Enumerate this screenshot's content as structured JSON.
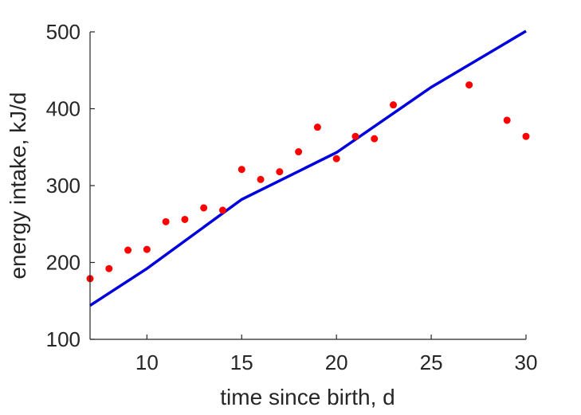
{
  "chart_data": {
    "type": "scatter",
    "title": "",
    "xlabel": "time since birth, d",
    "ylabel": "energy intake, kJ/d",
    "xlim": [
      7,
      30
    ],
    "ylim": [
      100,
      500
    ],
    "xticks": [
      10,
      15,
      20,
      25,
      30
    ],
    "yticks": [
      100,
      200,
      300,
      400,
      500
    ],
    "grid": false,
    "legend": "none",
    "series": [
      {
        "kind": "scatter",
        "color": "#ff0000",
        "x": [
          7,
          8,
          9,
          10,
          11,
          12,
          13,
          14,
          15,
          16,
          17,
          18,
          19,
          20,
          21,
          22,
          23,
          27,
          29,
          30
        ],
        "y": [
          179,
          192,
          216,
          217,
          253,
          256,
          271,
          268,
          321,
          308,
          318,
          344,
          376,
          335,
          364,
          361,
          405,
          431,
          385,
          364
        ]
      },
      {
        "kind": "line",
        "color": "#0000dd",
        "x": [
          7,
          10,
          15,
          20,
          25,
          30
        ],
        "y": [
          144,
          192,
          282,
          343,
          428,
          501
        ]
      }
    ]
  }
}
